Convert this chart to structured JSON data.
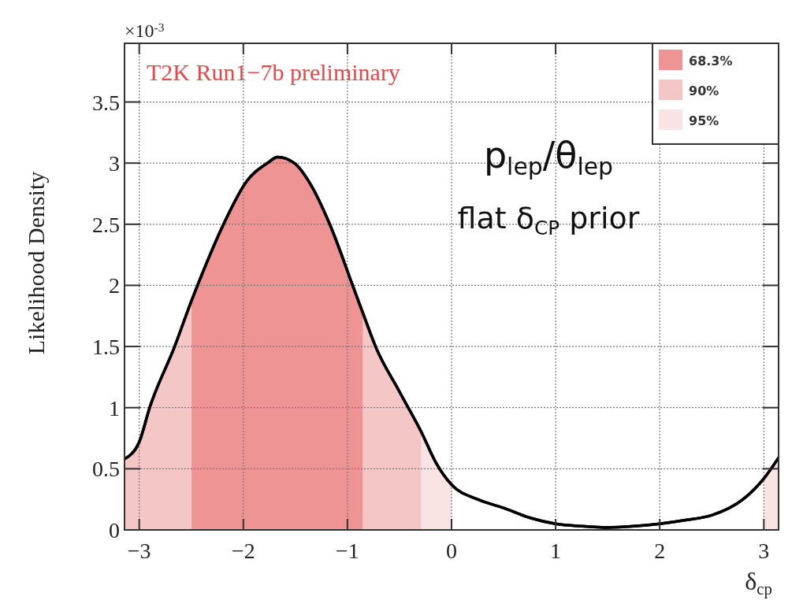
{
  "chart_data": {
    "type": "line",
    "xlabel": "δ$_{cp}$",
    "ylabel": "Likelihood Density",
    "annotations": [
      "T2K Run1−7b preliminary",
      "p$_{lep}$/θ$_{lep}$",
      "flat δ$_{CP}$ prior",
      "×10$^{-3}$"
    ],
    "xlim": [
      -3.1416,
      3.1416
    ],
    "xticks": [
      {
        "value": -3,
        "label": "−3"
      },
      {
        "value": -2,
        "label": "−2"
      },
      {
        "value": -1,
        "label": "−1"
      },
      0,
      1,
      2,
      3
    ],
    "ylim": [
      0,
      3.98
    ],
    "yticks": [
      0,
      0.5,
      1,
      1.5,
      2,
      2.5,
      3,
      3.5
    ],
    "grid": true,
    "legend": "top right",
    "series": [
      {
        "name": "68.3%",
        "type": "area",
        "color": "#ee9494",
        "x": [
          -2.5,
          -2.44,
          -2.19,
          -1.97,
          -1.77,
          -1.67,
          -1.51,
          -1.35,
          -1.17,
          -0.95,
          -0.85
        ],
        "values": [
          1.87,
          2.0,
          2.5,
          2.85,
          3.0,
          3.05,
          3.0,
          2.82,
          2.5,
          2.0,
          1.77
        ]
      },
      {
        "name": "90%",
        "type": "area",
        "color": "#f4c6c6",
        "x": [
          -3.1416,
          -3,
          -2.9,
          -2.66,
          -2.5,
          -1.67,
          -0.85,
          -0.73,
          -0.5,
          -0.29
        ],
        "values": [
          0.58,
          0.72,
          1.0,
          1.5,
          1.87,
          null,
          1.77,
          1.5,
          1.13,
          0.8
        ]
      },
      {
        "name": "95%",
        "type": "area",
        "color": "#f9e3e3",
        "x": [
          -0.29,
          -0.15,
          0,
          1.5,
          3,
          3.1416
        ],
        "values": [
          0.8,
          0.55,
          0.37,
          null,
          0.42,
          0.59
        ]
      },
      {
        "color": "#000000",
        "x": [
          -3.1416,
          -3,
          -2.9,
          -2.66,
          -2.5,
          -2.44,
          -2.19,
          -1.97,
          -1.77,
          -1.67,
          -1.51,
          -1.35,
          -1.17,
          -0.95,
          -0.85,
          -0.73,
          -0.5,
          -0.29,
          -0.15,
          0,
          0.25,
          0.5,
          0.75,
          1,
          1.25,
          1.5,
          1.75,
          2,
          2.25,
          2.5,
          2.8,
          3,
          3.1416
        ],
        "values": [
          0.58,
          0.72,
          1.0,
          1.5,
          1.87,
          2.0,
          2.5,
          2.85,
          3.0,
          3.05,
          3.0,
          2.82,
          2.5,
          2.0,
          1.77,
          1.5,
          1.13,
          0.8,
          0.55,
          0.37,
          0.25,
          0.18,
          0.1,
          0.05,
          0.03,
          0.02,
          0.03,
          0.05,
          0.08,
          0.12,
          0.25,
          0.42,
          0.59
        ]
      }
    ]
  }
}
